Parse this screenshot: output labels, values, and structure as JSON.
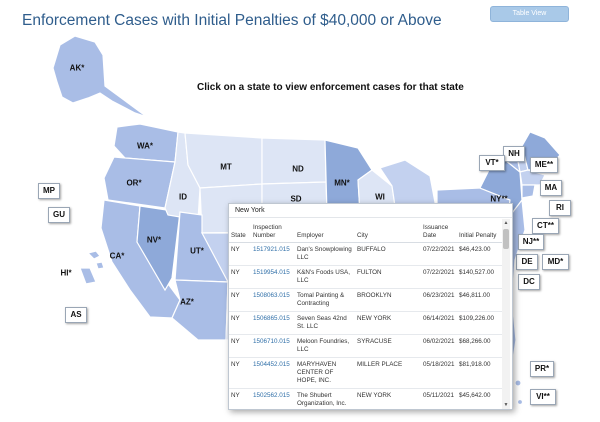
{
  "header": {
    "title": "Enforcement Cases with Initial Penalties of $40,000 or Above",
    "table_view_label": "Table View"
  },
  "instruction": "Click on a state to view enforcement cases for that state",
  "colors": {
    "darkest": "#8ea9d9",
    "dark": "#a9bde6",
    "medium": "#c3d1ef",
    "light": "#dde5f5",
    "title": "#2f5d8c"
  },
  "map_labels": {
    "AK": "AK*",
    "WA": "WA*",
    "OR": "OR*",
    "CA": "CA*",
    "NV": "NV*",
    "ID": "ID",
    "MT": "MT",
    "UT": "UT*",
    "AZ": "AZ*",
    "ND": "ND",
    "SD": "SD",
    "MN": "MN*",
    "WI": "WI",
    "NY": "NY**",
    "HI": "HI*"
  },
  "territory_boxes": {
    "MP": "MP",
    "GU": "GU",
    "AS": "AS",
    "NH": "NH",
    "VT": "VT*",
    "ME": "ME**",
    "MA": "MA",
    "RI": "RI",
    "CT": "CT**",
    "NJ": "NJ**",
    "DE": "DE",
    "MD": "MD*",
    "DC": "DC",
    "PR": "PR*",
    "VI": "VI**"
  },
  "popup": {
    "title": "New York",
    "headers": [
      "State",
      "Inspection Number",
      "Employer",
      "City",
      "Issuance Date",
      "Initial Penalty"
    ],
    "rows": [
      {
        "state": "NY",
        "inspection": "1517921.015",
        "employer": "Dan's Snowplowing LLC",
        "city": "BUFFALO",
        "date": "07/22/2021",
        "penalty": "$46,423.00"
      },
      {
        "state": "NY",
        "inspection": "1519954.015",
        "employer": "K&N's Foods USA, LLC",
        "city": "FULTON",
        "date": "07/22/2021",
        "penalty": "$140,527.00"
      },
      {
        "state": "NY",
        "inspection": "1508063.015",
        "employer": "Tomal Painting & Contracting",
        "city": "BROOKLYN",
        "date": "06/23/2021",
        "penalty": "$46,811.00"
      },
      {
        "state": "NY",
        "inspection": "1506865.015",
        "employer": "Seven Seas 42nd St. LLC",
        "city": "NEW YORK",
        "date": "06/14/2021",
        "penalty": "$109,226.00"
      },
      {
        "state": "NY",
        "inspection": "1506710.015",
        "employer": "Meloon Foundries, LLC",
        "city": "SYRACUSE",
        "date": "06/02/2021",
        "penalty": "$68,266.00"
      },
      {
        "state": "NY",
        "inspection": "1504452.015",
        "employer": "MARYHAVEN CENTER OF HOPE, INC.",
        "city": "MILLER PLACE",
        "date": "05/18/2021",
        "penalty": "$81,918.00"
      },
      {
        "state": "NY",
        "inspection": "1502562.015",
        "employer": "The Shubert Organization, Inc.",
        "city": "NEW YORK",
        "date": "05/11/2021",
        "penalty": "$45,642.00"
      }
    ]
  }
}
